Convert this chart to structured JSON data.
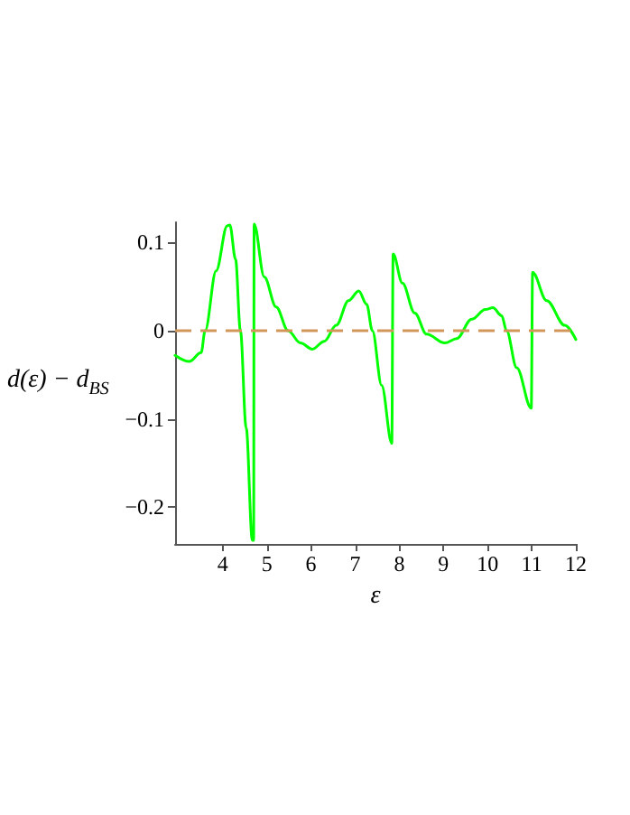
{
  "chart_data": {
    "type": "line",
    "xlabel": "ε",
    "ylabel": "d(ε) − d$_{BS}$",
    "x": [
      2.92,
      3.24,
      3.51,
      3.6,
      3.85,
      4.1,
      4.16,
      4.29,
      4.4,
      4.53,
      4.67,
      4.7,
      4.71,
      4.94,
      5.21,
      5.48,
      5.76,
      6.03,
      6.3,
      6.57,
      6.85,
      7.08,
      7.26,
      7.39,
      7.6,
      7.83,
      7.86,
      8.07,
      8.35,
      8.62,
      9.03,
      9.3,
      9.64,
      9.95,
      10.12,
      10.32,
      10.43,
      10.66,
      10.99,
      11.02,
      11.34,
      11.75,
      12
    ],
    "series": [
      {
        "color": "#00ff00",
        "values": [
          -0.028,
          -0.035,
          -0.025,
          0,
          0.068,
          0.119,
          0.12,
          0.081,
          0,
          -0.11,
          -0.238,
          -0.238,
          0.121,
          0.061,
          0.027,
          0,
          -0.014,
          -0.021,
          -0.012,
          0.006,
          0.034,
          0.045,
          0.03,
          0,
          -0.062,
          -0.128,
          0.087,
          0.054,
          0.02,
          -0.004,
          -0.014,
          -0.009,
          0.013,
          0.024,
          0.026,
          0.017,
          0,
          -0.042,
          -0.088,
          0.066,
          0.034,
          0.006,
          -0.01
        ]
      }
    ],
    "xlim": [
      2.92,
      12
    ],
    "xticks": [
      4,
      5,
      6,
      7,
      8,
      9,
      10,
      11,
      12
    ],
    "ylim": [
      -0.242,
      0.123
    ],
    "yticks": [
      {
        "value": -0.2,
        "label": "−0.2"
      },
      {
        "value": -0.1,
        "label": "−0.1"
      },
      0,
      0.1
    ],
    "ref_lines": [
      {
        "axis": "y",
        "value": 0,
        "color": "#d2955a",
        "line_style": "dashed"
      }
    ],
    "grid": false,
    "marker": "none",
    "line_style": "solid"
  }
}
